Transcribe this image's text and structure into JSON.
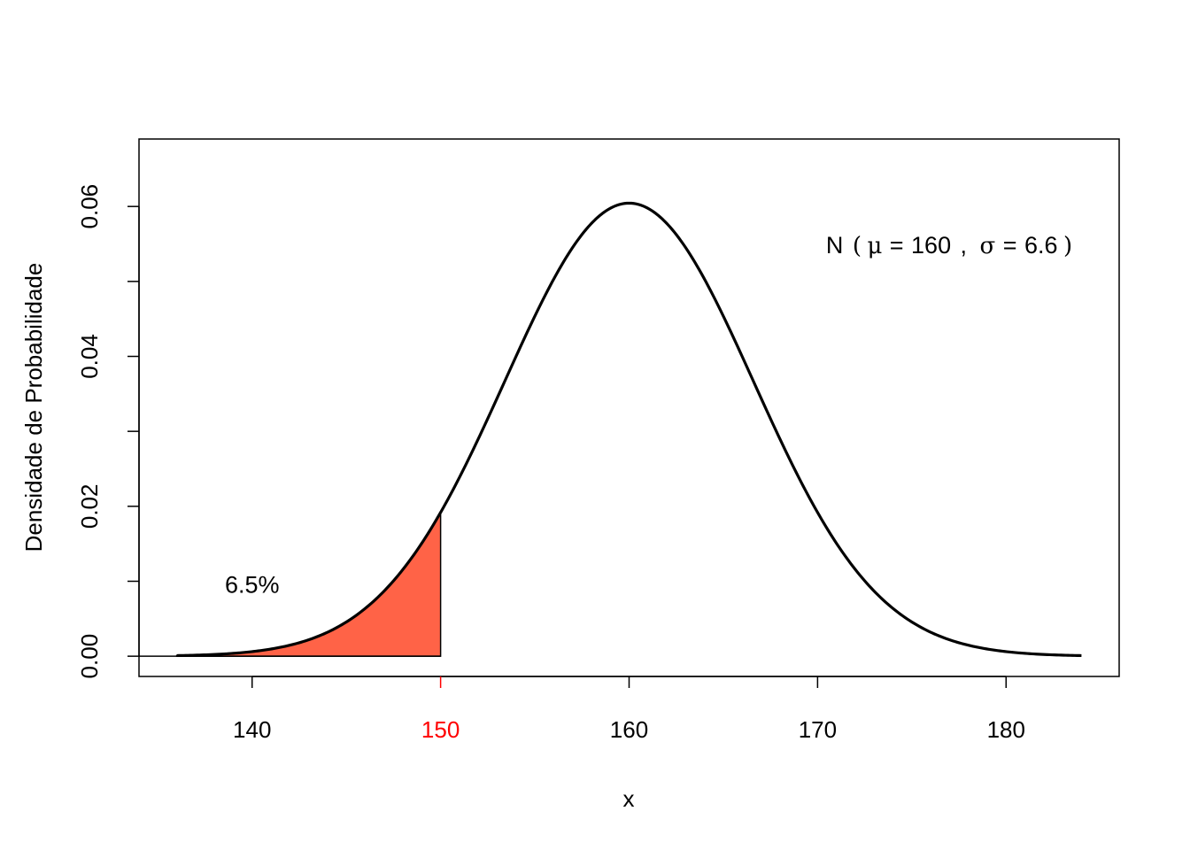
{
  "chart_data": {
    "type": "line",
    "distribution": "normal",
    "mean": 160,
    "sd": 6.6,
    "x_range": [
      136,
      184
    ],
    "xlim": [
      134,
      186
    ],
    "ylim": [
      -0.0027,
      0.069
    ],
    "xlabel": "x",
    "ylabel": "Densidade de Probabilidade",
    "x_ticks": [
      {
        "value": 140,
        "label": "140",
        "color": "#000000"
      },
      {
        "value": 150,
        "label": "150",
        "color": "#ff0000"
      },
      {
        "value": 160,
        "label": "160",
        "color": "#000000"
      },
      {
        "value": 170,
        "label": "170",
        "color": "#000000"
      },
      {
        "value": 180,
        "label": "180",
        "color": "#000000"
      }
    ],
    "y_ticks": [
      {
        "value": 0.0,
        "label": "0.00"
      },
      {
        "value": 0.01,
        "label": ""
      },
      {
        "value": 0.02,
        "label": "0.02"
      },
      {
        "value": 0.03,
        "label": ""
      },
      {
        "value": 0.04,
        "label": "0.04"
      },
      {
        "value": 0.05,
        "label": ""
      },
      {
        "value": 0.06,
        "label": "0.06"
      }
    ],
    "shaded_region": {
      "from": 136,
      "to": 150,
      "color": "#ff6347",
      "percent_label": "6.5%",
      "percent_label_pos": [
        140,
        0.0095
      ]
    },
    "formula": {
      "prefix": "N",
      "open": "(",
      "mu": "μ",
      "eq": "=",
      "mean_label": "160",
      "sep": ",",
      "sigma": "σ",
      "sd_label": "6.6",
      "close": ")"
    },
    "grid": false,
    "colors": {
      "curve": "#000000",
      "fill": "#ff6347",
      "highlight_tick": "#ff0000"
    }
  }
}
